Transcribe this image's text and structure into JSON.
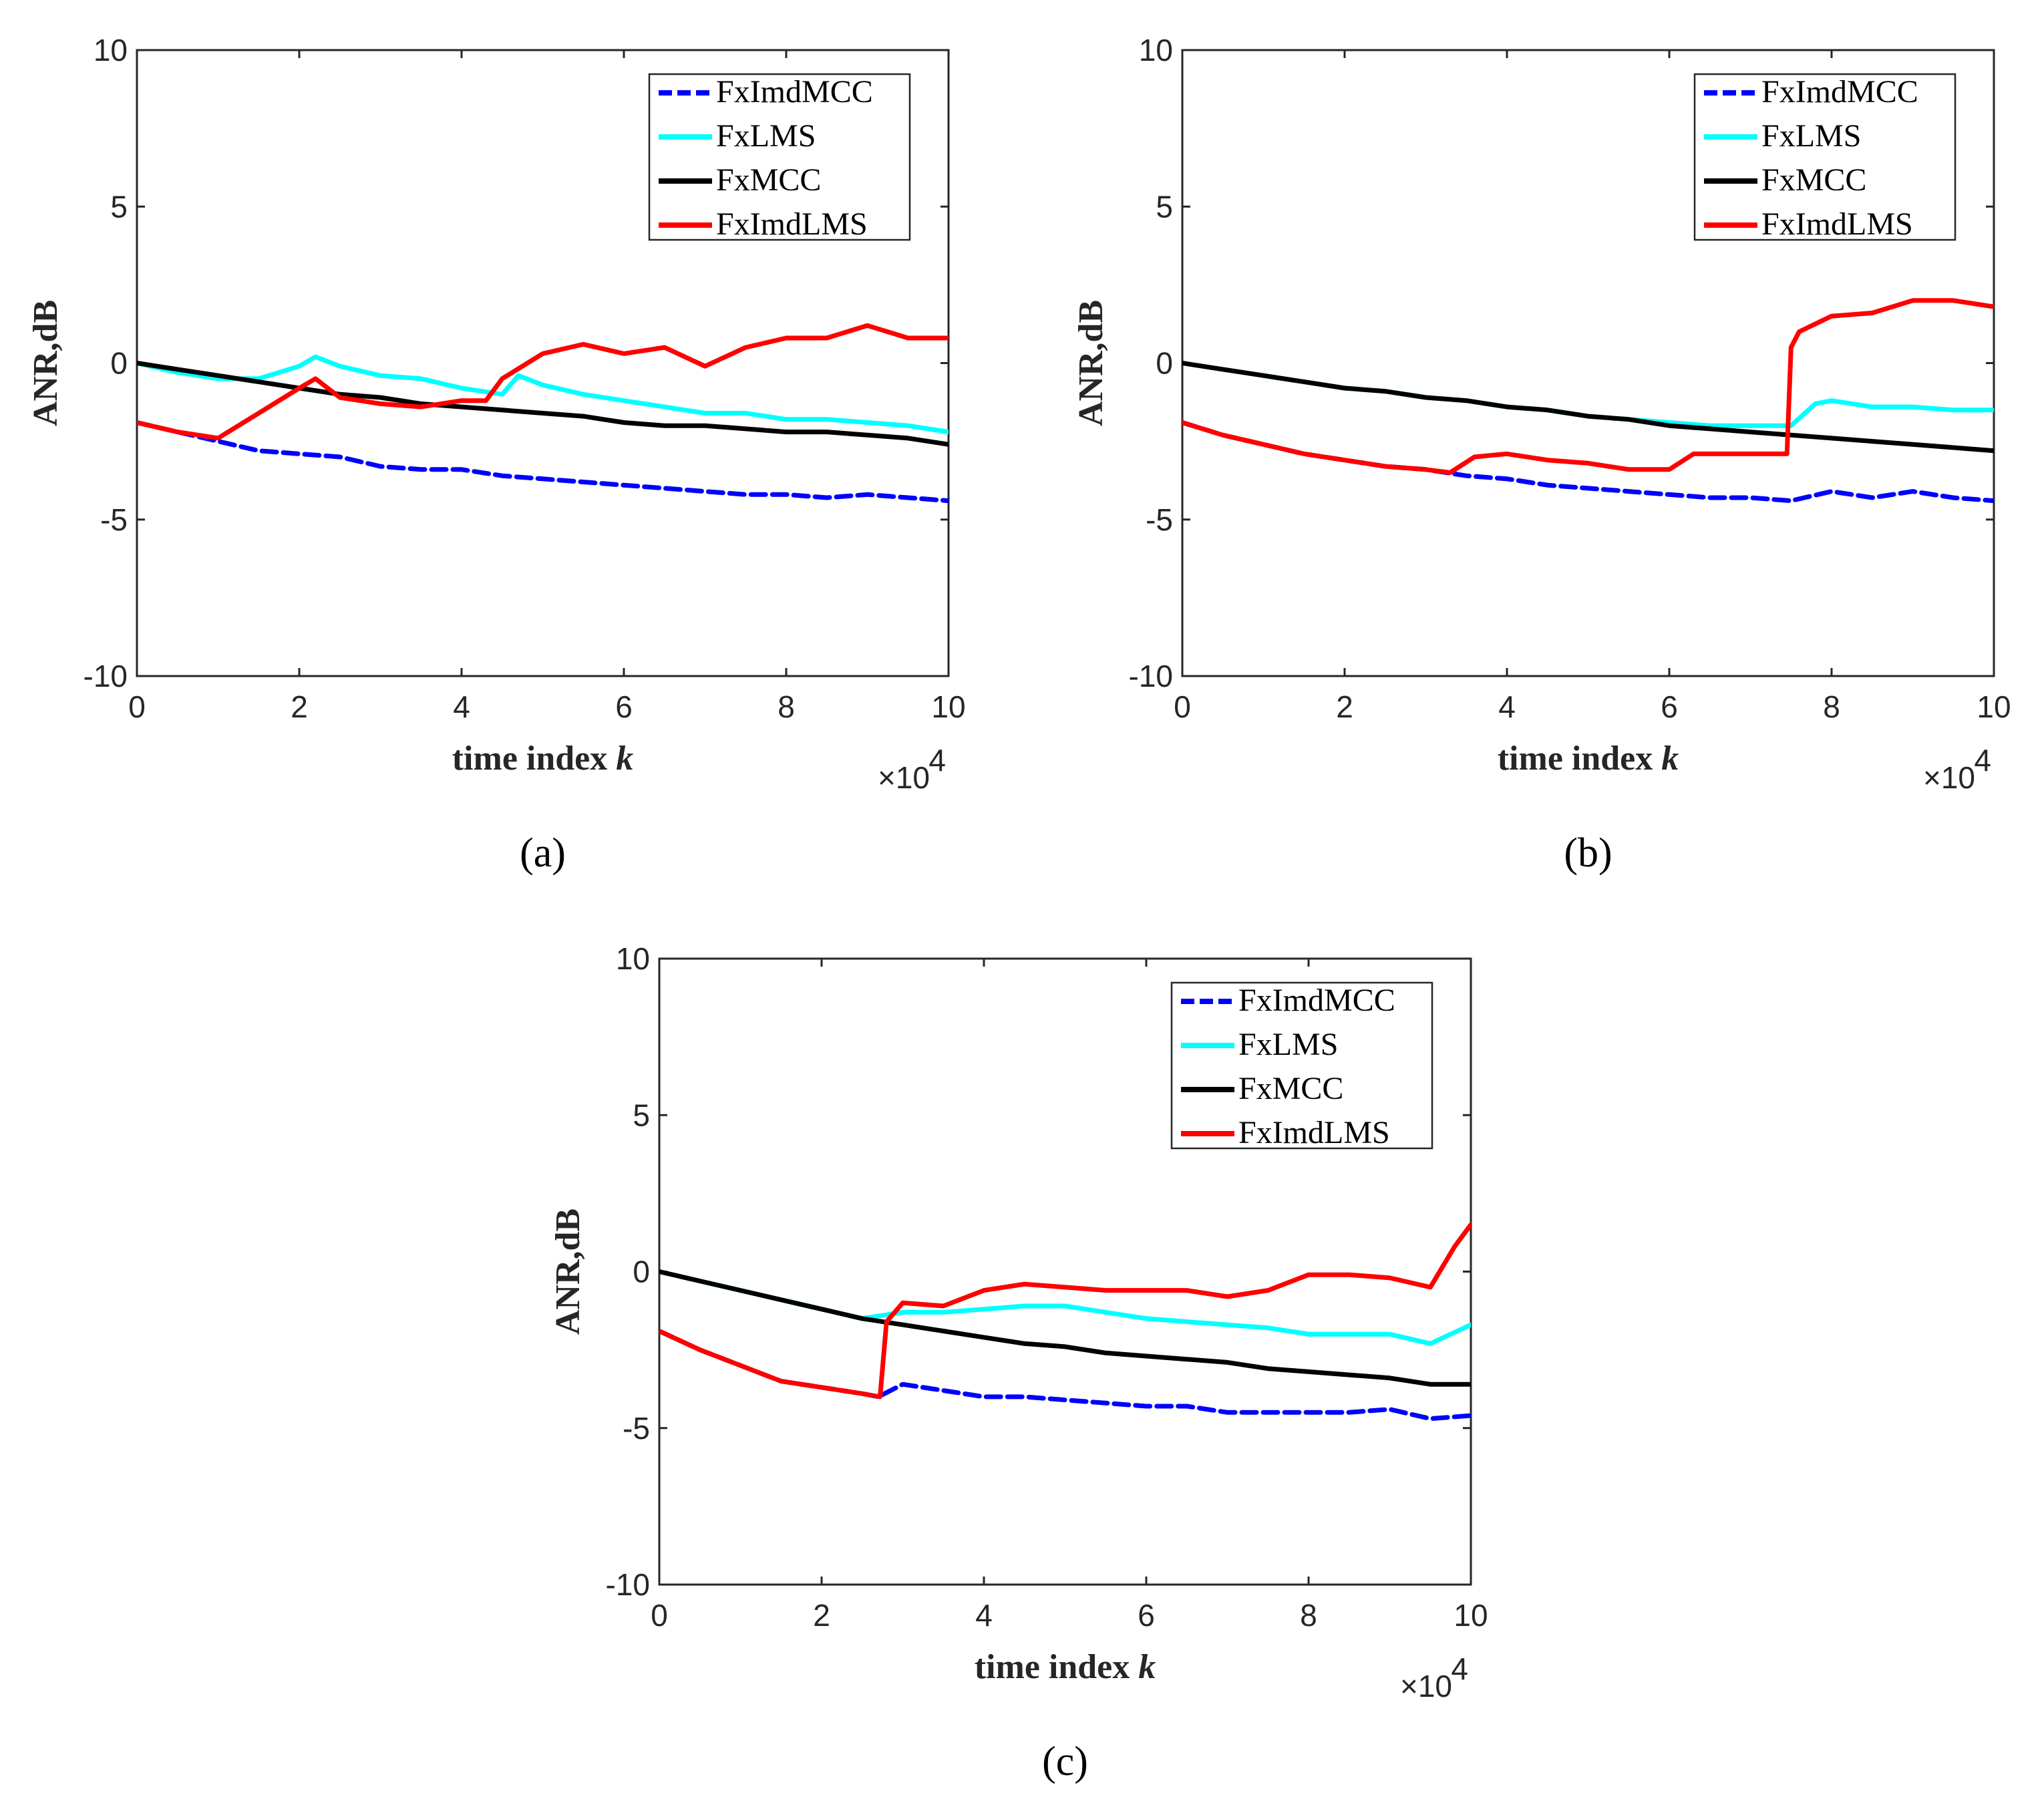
{
  "chart_data": [
    {
      "type": "line",
      "panel_label": "(a)",
      "xlabel": "time index",
      "xlabel_var": "k",
      "ylabel": "ANR,dB",
      "xlim": [
        0,
        10
      ],
      "ylim": [
        -10,
        10
      ],
      "xticks": [
        0,
        2,
        4,
        6,
        8,
        10
      ],
      "yticks": [
        -10,
        -5,
        0,
        5,
        10
      ],
      "x_multiplier": "×10",
      "x_multiplier_exp": "4",
      "legend_position": "top-right",
      "series": [
        {
          "name": "FxImdMCC",
          "color": "#0000ff",
          "dashed": true,
          "x": [
            0,
            0.5,
            1,
            1.5,
            2,
            2.5,
            3,
            3.5,
            4,
            4.5,
            5,
            5.5,
            6,
            6.5,
            7,
            7.5,
            8,
            8.5,
            9,
            9.5,
            10
          ],
          "y": [
            -1.9,
            -2.2,
            -2.5,
            -2.8,
            -2.9,
            -3.0,
            -3.3,
            -3.4,
            -3.4,
            -3.6,
            -3.7,
            -3.8,
            -3.9,
            -4.0,
            -4.1,
            -4.2,
            -4.2,
            -4.3,
            -4.2,
            -4.3,
            -4.4
          ]
        },
        {
          "name": "FxLMS",
          "color": "#00ffff",
          "dashed": false,
          "x": [
            0,
            0.5,
            1,
            1.5,
            2,
            2.2,
            2.5,
            3,
            3.5,
            4,
            4.5,
            4.7,
            5,
            5.5,
            6,
            6.5,
            7,
            7.5,
            8,
            8.5,
            9,
            9.5,
            10
          ],
          "y": [
            0,
            -0.3,
            -0.5,
            -0.5,
            -0.1,
            0.2,
            -0.1,
            -0.4,
            -0.5,
            -0.8,
            -1.0,
            -0.4,
            -0.7,
            -1.0,
            -1.2,
            -1.4,
            -1.6,
            -1.6,
            -1.8,
            -1.8,
            -1.9,
            -2.0,
            -2.2
          ]
        },
        {
          "name": "FxMCC",
          "color": "#000000",
          "dashed": false,
          "x": [
            0,
            0.5,
            1,
            1.5,
            2,
            2.5,
            3,
            3.5,
            4,
            4.5,
            5,
            5.5,
            6,
            6.5,
            7,
            7.5,
            8,
            8.5,
            9,
            9.5,
            10
          ],
          "y": [
            0,
            -0.2,
            -0.4,
            -0.6,
            -0.8,
            -1.0,
            -1.1,
            -1.3,
            -1.4,
            -1.5,
            -1.6,
            -1.7,
            -1.9,
            -2.0,
            -2.0,
            -2.1,
            -2.2,
            -2.2,
            -2.3,
            -2.4,
            -2.6
          ]
        },
        {
          "name": "FxImdLMS",
          "color": "#ff0000",
          "dashed": false,
          "x": [
            0,
            0.5,
            1,
            1.5,
            2,
            2.2,
            2.5,
            3,
            3.5,
            4,
            4.3,
            4.5,
            5,
            5.5,
            6,
            6.5,
            7,
            7.5,
            8,
            8.5,
            9,
            9.5,
            10
          ],
          "y": [
            -1.9,
            -2.2,
            -2.4,
            -1.6,
            -0.8,
            -0.5,
            -1.1,
            -1.3,
            -1.4,
            -1.2,
            -1.2,
            -0.5,
            0.3,
            0.6,
            0.3,
            0.5,
            -0.1,
            0.5,
            0.8,
            0.8,
            1.2,
            0.8,
            0.8
          ]
        }
      ]
    },
    {
      "type": "line",
      "panel_label": "(b)",
      "xlabel": "time index",
      "xlabel_var": "k",
      "ylabel": "ANR,dB",
      "xlim": [
        0,
        10
      ],
      "ylim": [
        -10,
        10
      ],
      "xticks": [
        0,
        2,
        4,
        6,
        8,
        10
      ],
      "yticks": [
        -10,
        -5,
        0,
        5,
        10
      ],
      "x_multiplier": "×10",
      "x_multiplier_exp": "4",
      "legend_position": "top-right",
      "series": [
        {
          "name": "FxImdMCC",
          "color": "#0000ff",
          "dashed": true,
          "x": [
            0,
            0.5,
            1,
            1.5,
            2,
            2.5,
            3,
            3.5,
            4,
            4.5,
            5,
            5.5,
            6,
            6.5,
            7,
            7.5,
            8,
            8.5,
            9,
            9.5,
            10
          ],
          "y": [
            -1.9,
            -2.3,
            -2.6,
            -2.9,
            -3.1,
            -3.3,
            -3.4,
            -3.6,
            -3.7,
            -3.9,
            -4.0,
            -4.1,
            -4.2,
            -4.3,
            -4.3,
            -4.4,
            -4.1,
            -4.3,
            -4.1,
            -4.3,
            -4.4
          ]
        },
        {
          "name": "FxLMS",
          "color": "#00ffff",
          "dashed": false,
          "x": [
            0,
            0.5,
            1,
            1.5,
            2,
            2.5,
            3,
            3.5,
            4,
            4.5,
            5,
            5.5,
            6,
            6.5,
            7,
            7.5,
            7.8,
            8,
            8.5,
            9,
            9.5,
            10
          ],
          "y": [
            0,
            -0.2,
            -0.4,
            -0.6,
            -0.8,
            -0.9,
            -1.1,
            -1.2,
            -1.4,
            -1.5,
            -1.7,
            -1.8,
            -1.9,
            -2.0,
            -2.0,
            -2.0,
            -1.3,
            -1.2,
            -1.4,
            -1.4,
            -1.5,
            -1.5
          ]
        },
        {
          "name": "FxMCC",
          "color": "#000000",
          "dashed": false,
          "x": [
            0,
            0.5,
            1,
            1.5,
            2,
            2.5,
            3,
            3.5,
            4,
            4.5,
            5,
            5.5,
            6,
            6.5,
            7,
            7.5,
            8,
            8.5,
            9,
            9.5,
            10
          ],
          "y": [
            0,
            -0.2,
            -0.4,
            -0.6,
            -0.8,
            -0.9,
            -1.1,
            -1.2,
            -1.4,
            -1.5,
            -1.7,
            -1.8,
            -2.0,
            -2.1,
            -2.2,
            -2.3,
            -2.4,
            -2.5,
            -2.6,
            -2.7,
            -2.8
          ]
        },
        {
          "name": "FxImdLMS",
          "color": "#ff0000",
          "dashed": false,
          "x": [
            0,
            0.5,
            1,
            1.5,
            2,
            2.5,
            3,
            3.3,
            3.6,
            4,
            4.5,
            5,
            5.5,
            6,
            6.3,
            6.7,
            7,
            7.45,
            7.5,
            7.6,
            8,
            8.5,
            9,
            9.5,
            10
          ],
          "y": [
            -1.9,
            -2.3,
            -2.6,
            -2.9,
            -3.1,
            -3.3,
            -3.4,
            -3.5,
            -3.0,
            -2.9,
            -3.1,
            -3.2,
            -3.4,
            -3.4,
            -2.9,
            -2.9,
            -2.9,
            -2.9,
            0.5,
            1.0,
            1.5,
            1.6,
            2.0,
            2.0,
            1.8
          ]
        }
      ]
    },
    {
      "type": "line",
      "panel_label": "(c)",
      "xlabel": "time index",
      "xlabel_var": "k",
      "ylabel": "ANR,dB",
      "xlim": [
        0,
        10
      ],
      "ylim": [
        -10,
        10
      ],
      "xticks": [
        0,
        2,
        4,
        6,
        8,
        10
      ],
      "yticks": [
        -10,
        -5,
        0,
        5,
        10
      ],
      "x_multiplier": "×10",
      "x_multiplier_exp": "4",
      "legend_position": "top-right",
      "series": [
        {
          "name": "FxImdMCC",
          "color": "#0000ff",
          "dashed": true,
          "x": [
            0,
            0.5,
            1,
            1.5,
            2,
            2.5,
            2.7,
            3,
            3.5,
            4,
            4.5,
            5,
            5.5,
            6,
            6.5,
            7,
            7.5,
            8,
            8.5,
            9,
            9.5,
            10
          ],
          "y": [
            -1.9,
            -2.5,
            -3.0,
            -3.5,
            -3.7,
            -3.9,
            -4.0,
            -3.6,
            -3.8,
            -4.0,
            -4.0,
            -4.1,
            -4.2,
            -4.3,
            -4.3,
            -4.5,
            -4.5,
            -4.5,
            -4.5,
            -4.4,
            -4.7,
            -4.6
          ]
        },
        {
          "name": "FxLMS",
          "color": "#00ffff",
          "dashed": false,
          "x": [
            0,
            0.5,
            1,
            1.5,
            2,
            2.5,
            3,
            3.5,
            4,
            4.5,
            5,
            5.5,
            6,
            6.5,
            7,
            7.5,
            8,
            8.5,
            9,
            9.5,
            10
          ],
          "y": [
            0,
            -0.3,
            -0.6,
            -0.9,
            -1.2,
            -1.5,
            -1.3,
            -1.3,
            -1.2,
            -1.1,
            -1.1,
            -1.3,
            -1.5,
            -1.6,
            -1.7,
            -1.8,
            -2.0,
            -2.0,
            -2.0,
            -2.3,
            -1.7
          ]
        },
        {
          "name": "FxMCC",
          "color": "#000000",
          "dashed": false,
          "x": [
            0,
            0.5,
            1,
            1.5,
            2,
            2.5,
            3,
            3.5,
            4,
            4.5,
            5,
            5.5,
            6,
            6.5,
            7,
            7.5,
            8,
            8.5,
            9,
            9.5,
            10
          ],
          "y": [
            0,
            -0.3,
            -0.6,
            -0.9,
            -1.2,
            -1.5,
            -1.7,
            -1.9,
            -2.1,
            -2.3,
            -2.4,
            -2.6,
            -2.7,
            -2.8,
            -2.9,
            -3.1,
            -3.2,
            -3.3,
            -3.4,
            -3.6,
            -3.6
          ]
        },
        {
          "name": "FxImdLMS",
          "color": "#ff0000",
          "dashed": false,
          "x": [
            0,
            0.5,
            1,
            1.5,
            2,
            2.5,
            2.72,
            2.8,
            3,
            3.5,
            4,
            4.5,
            5,
            5.5,
            6,
            6.5,
            7,
            7.5,
            8,
            8.5,
            9,
            9.5,
            9.8,
            10
          ],
          "y": [
            -1.9,
            -2.5,
            -3.0,
            -3.5,
            -3.7,
            -3.9,
            -4.0,
            -1.6,
            -1.0,
            -1.1,
            -0.6,
            -0.4,
            -0.5,
            -0.6,
            -0.6,
            -0.6,
            -0.8,
            -0.6,
            -0.1,
            -0.1,
            -0.2,
            -0.5,
            0.8,
            1.5
          ]
        }
      ]
    }
  ]
}
